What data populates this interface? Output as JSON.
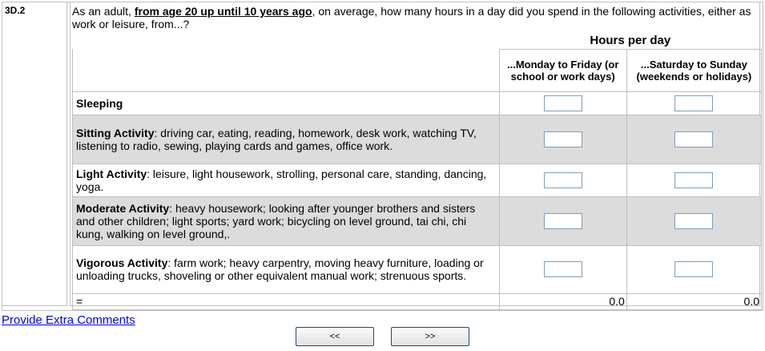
{
  "question": {
    "number": "3D.2",
    "text_before": "As an adult, ",
    "emphasis": "from age 20 up until 10 years ago",
    "text_after": ", on average, how many hours in a day did you spend in the following activities, either as work or leisure, from...?"
  },
  "header": {
    "title": "Hours per day",
    "col1": "...Monday to Friday (or school or work days)",
    "col2": "...Saturday to Sunday (weekends or holidays)"
  },
  "rows": [
    {
      "label": "Sleeping",
      "desc": "",
      "weekday": "",
      "weekend": ""
    },
    {
      "label": "Sitting Activity",
      "desc": ": driving car, eating, reading, homework, desk work, watching TV, listening to radio, sewing, playing cards and games, office work.",
      "weekday": "",
      "weekend": ""
    },
    {
      "label": "Light Activity",
      "desc": ": leisure, light housework, strolling, personal care, standing, dancing, yoga.",
      "weekday": "",
      "weekend": ""
    },
    {
      "label": "Moderate Activity",
      "desc": ": heavy housework; looking after younger brothers and sisters and other children; light sports; yard work; bicycling on level ground, tai chi, chi kung, walking on level ground,.",
      "weekday": "",
      "weekend": ""
    },
    {
      "label": "Vigorous Activity",
      "desc": ": farm work; heavy carpentry, moving heavy furniture, loading or unloading trucks, shoveling or other equivalent manual work; strenuous sports.",
      "weekday": "",
      "weekend": ""
    }
  ],
  "total": {
    "label": "=",
    "weekday": "0.0",
    "weekend": "0.0"
  },
  "footer": {
    "comments_link": "Provide Extra Comments",
    "prev": "<<",
    "next": ">>"
  }
}
